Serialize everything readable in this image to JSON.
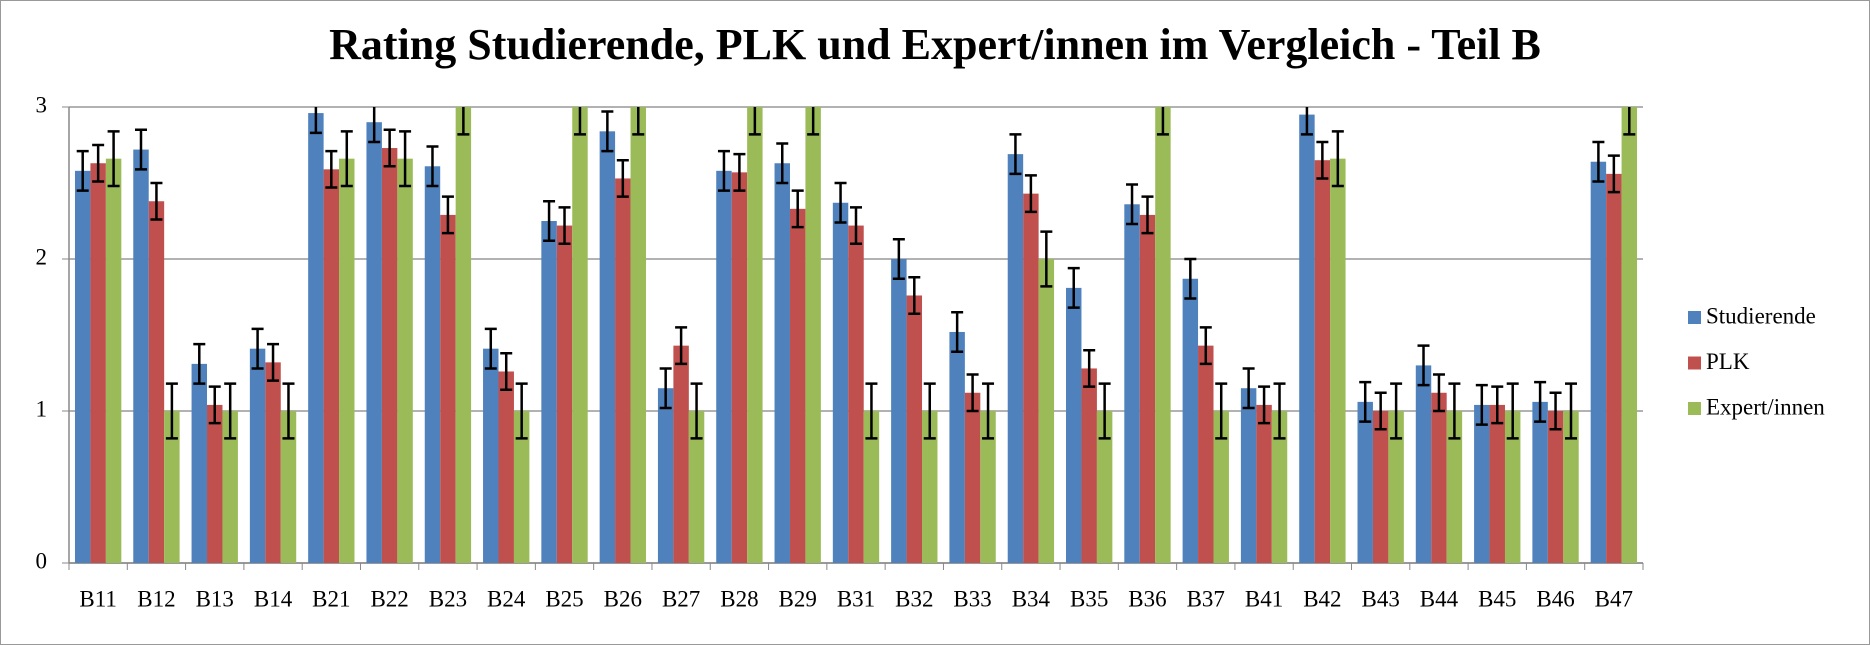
{
  "chart_data": {
    "type": "bar",
    "title": "Rating Studierende, PLK und Expert/innen im Vergleich - Teil B",
    "categories": [
      "B11",
      "B12",
      "B13",
      "B14",
      "B21",
      "B22",
      "B23",
      "B24",
      "B25",
      "B26",
      "B27",
      "B28",
      "B29",
      "B31",
      "B32",
      "B33",
      "B34",
      "B35",
      "B36",
      "B37",
      "B41",
      "B42",
      "B43",
      "B44",
      "B45",
      "B46",
      "B47"
    ],
    "series": [
      {
        "name": "Studierende",
        "color": "#4f81bd",
        "values": [
          2.58,
          2.72,
          1.31,
          1.41,
          2.96,
          2.9,
          2.61,
          1.41,
          2.25,
          2.84,
          1.15,
          2.58,
          2.63,
          2.37,
          2.0,
          1.52,
          2.69,
          1.81,
          2.36,
          1.87,
          1.15,
          2.95,
          1.06,
          1.3,
          1.04,
          1.06,
          2.64
        ],
        "errors": [
          0.13,
          0.13,
          0.13,
          0.13,
          0.13,
          0.13,
          0.13,
          0.13,
          0.13,
          0.13,
          0.13,
          0.13,
          0.13,
          0.13,
          0.13,
          0.13,
          0.13,
          0.13,
          0.13,
          0.13,
          0.13,
          0.13,
          0.13,
          0.13,
          0.13,
          0.13,
          0.13
        ]
      },
      {
        "name": "PLK",
        "color": "#c0504d",
        "values": [
          2.63,
          2.38,
          1.04,
          1.32,
          2.59,
          2.73,
          2.29,
          1.26,
          2.22,
          2.53,
          1.43,
          2.57,
          2.33,
          2.22,
          1.76,
          1.12,
          2.43,
          1.28,
          2.29,
          1.43,
          1.04,
          2.65,
          1.0,
          1.12,
          1.04,
          1.0,
          2.56
        ],
        "errors": [
          0.12,
          0.12,
          0.12,
          0.12,
          0.12,
          0.12,
          0.12,
          0.12,
          0.12,
          0.12,
          0.12,
          0.12,
          0.12,
          0.12,
          0.12,
          0.12,
          0.12,
          0.12,
          0.12,
          0.12,
          0.12,
          0.12,
          0.12,
          0.12,
          0.12,
          0.12,
          0.12
        ]
      },
      {
        "name": "Expert/innen",
        "color": "#9bbb59",
        "values": [
          2.66,
          1,
          1,
          1,
          2.66,
          2.66,
          3,
          1,
          3,
          3,
          1,
          3,
          3,
          1,
          1,
          1,
          2.0,
          1,
          3,
          1,
          1,
          2.66,
          1,
          1,
          1,
          1,
          3
        ],
        "errors": [
          0.18,
          0.18,
          0.18,
          0.18,
          0.18,
          0.18,
          0.18,
          0.18,
          0.18,
          0.18,
          0.18,
          0.18,
          0.18,
          0.18,
          0.18,
          0.18,
          0.18,
          0.18,
          0.18,
          0.18,
          0.18,
          0.18,
          0.18,
          0.18,
          0.18,
          0.18,
          0.18
        ]
      }
    ],
    "ylim": [
      0,
      3
    ],
    "yticks": [
      0,
      1,
      2,
      3
    ],
    "grid": true,
    "legend": "right"
  }
}
